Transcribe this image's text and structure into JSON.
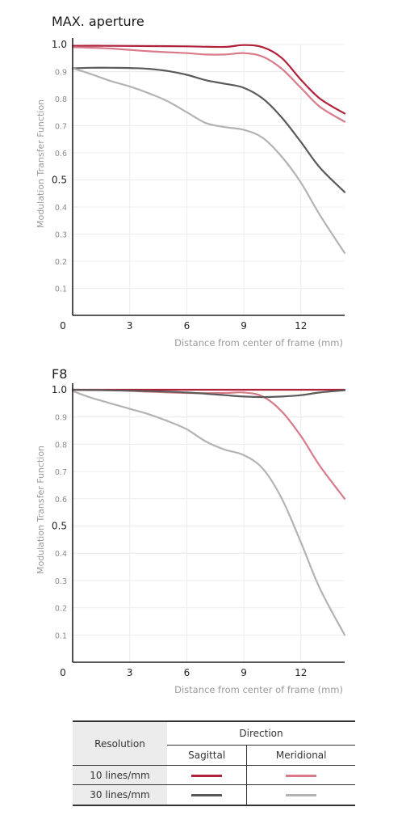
{
  "chart_data": [
    {
      "type": "line",
      "title": "MAX. aperture",
      "xlabel": "Distance from center of frame (mm)",
      "ylabel": "Modulation Transfer Function",
      "xlim": [
        0,
        14.3
      ],
      "ylim": [
        0,
        1.0
      ],
      "xticks": [
        "0",
        "3",
        "6",
        "9",
        "12"
      ],
      "yticks": [
        "1.0",
        "0.9",
        "0.8",
        "0.7",
        "0.6",
        "0.5",
        "0.4",
        "0.3",
        "0.2",
        "0.1"
      ],
      "major_yticks": [
        "1.0",
        "0.5"
      ],
      "grid": true,
      "series": [
        {
          "color": "#b0213a",
          "width": 2.2,
          "x": [
            0,
            2,
            4,
            6,
            8,
            9,
            10,
            11,
            12,
            13,
            14.3
          ],
          "y": [
            0.995,
            0.995,
            0.994,
            0.993,
            0.991,
            0.998,
            0.99,
            0.95,
            0.87,
            0.8,
            0.745
          ]
        },
        {
          "color": "#d87a8a",
          "width": 2.2,
          "x": [
            0,
            2,
            4,
            6,
            7,
            8,
            9,
            10,
            11,
            12,
            13,
            14.3
          ],
          "y": [
            0.99,
            0.985,
            0.975,
            0.968,
            0.963,
            0.963,
            0.968,
            0.955,
            0.91,
            0.84,
            0.77,
            0.715
          ]
        },
        {
          "color": "#5a5a5a",
          "width": 2.2,
          "x": [
            0,
            1,
            2,
            3,
            4,
            5,
            6,
            7,
            8,
            9,
            10,
            11,
            12,
            13,
            14.3
          ],
          "y": [
            0.912,
            0.914,
            0.914,
            0.913,
            0.91,
            0.902,
            0.888,
            0.868,
            0.855,
            0.84,
            0.8,
            0.73,
            0.64,
            0.545,
            0.455
          ]
        },
        {
          "color": "#b3b3b3",
          "width": 2.2,
          "x": [
            0,
            1,
            2,
            3,
            4,
            5,
            6,
            7,
            8,
            9,
            10,
            11,
            12,
            13,
            14.3
          ],
          "y": [
            0.912,
            0.89,
            0.865,
            0.845,
            0.82,
            0.79,
            0.75,
            0.71,
            0.695,
            0.685,
            0.655,
            0.585,
            0.49,
            0.37,
            0.23
          ]
        }
      ]
    },
    {
      "type": "line",
      "title": "F8",
      "xlabel": "Distance from center of frame (mm)",
      "ylabel": "Modulation Transfer Function",
      "xlim": [
        0,
        14.3
      ],
      "ylim": [
        0,
        1.0
      ],
      "xticks": [
        "0",
        "3",
        "6",
        "9",
        "12"
      ],
      "yticks": [
        "1.0",
        "0.9",
        "0.8",
        "0.7",
        "0.6",
        "0.5",
        "0.4",
        "0.3",
        "0.2",
        "0.1"
      ],
      "major_yticks": [
        "1.0",
        "0.5"
      ],
      "grid": true,
      "series": [
        {
          "color": "#b0213a",
          "width": 2.2,
          "x": [
            0,
            14.3
          ],
          "y": [
            1.0,
            1.0
          ]
        },
        {
          "color": "#d87a8a",
          "width": 2.2,
          "x": [
            0,
            2,
            4,
            6,
            8,
            9,
            10,
            11,
            12,
            13,
            14.3
          ],
          "y": [
            0.999,
            0.998,
            0.993,
            0.988,
            0.988,
            0.99,
            0.975,
            0.92,
            0.83,
            0.72,
            0.6
          ]
        },
        {
          "color": "#5a5a5a",
          "width": 2.2,
          "x": [
            0,
            2,
            4,
            6,
            8,
            9,
            10,
            11,
            12,
            13,
            14.3
          ],
          "y": [
            1.0,
            0.998,
            0.995,
            0.99,
            0.98,
            0.975,
            0.973,
            0.975,
            0.98,
            0.99,
            0.998
          ]
        },
        {
          "color": "#b3b3b3",
          "width": 2.2,
          "x": [
            0,
            1,
            2,
            3,
            4,
            5,
            6,
            7,
            8,
            9,
            10,
            11,
            12,
            13,
            14.3
          ],
          "y": [
            0.995,
            0.97,
            0.95,
            0.93,
            0.91,
            0.885,
            0.855,
            0.81,
            0.78,
            0.76,
            0.71,
            0.6,
            0.44,
            0.27,
            0.1
          ]
        }
      ]
    }
  ],
  "legend": {
    "resolution_header": "Resolution",
    "direction_header": "Direction",
    "sagittal": "Sagittal",
    "meridional": "Meridional",
    "rows": [
      {
        "label": "10 lines/mm",
        "sagittal_color": "#b0213a",
        "meridional_color": "#d87a8a"
      },
      {
        "label": "30 lines/mm",
        "sagittal_color": "#5a5a5a",
        "meridional_color": "#b3b3b3"
      }
    ]
  }
}
